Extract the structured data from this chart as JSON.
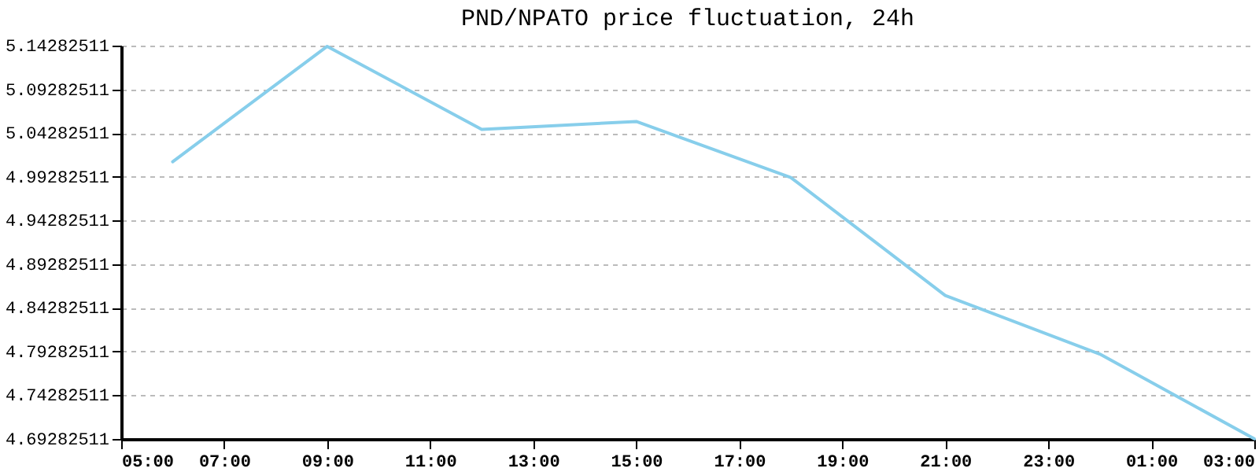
{
  "chart_data": {
    "type": "line",
    "title": "PND/NPATO price fluctuation, 24h",
    "x": [
      "--01-01T06:00",
      "--01-01T09:00",
      "--01-01T12:00",
      "--01-01T15:00",
      "--01-01T18:00",
      "--01-01T21:00",
      "--01-02T00:00",
      "--01-02T03:00"
    ],
    "series": [
      {
        "color": "#87ceeb",
        "values": [
          5.01,
          5.142,
          5.047,
          5.056,
          4.992,
          4.857,
          4.79,
          4.693
        ]
      }
    ],
    "xlim": [
      "--01-01T05:00",
      "--01-02T03:00"
    ],
    "xticks": [
      {
        "value": "--01-01T05:00",
        "label": "05:00"
      },
      {
        "value": "--01-01T07:00",
        "label": "07:00"
      },
      {
        "value": "--01-01T09:00",
        "label": "09:00"
      },
      {
        "value": "--01-01T11:00",
        "label": "11:00"
      },
      {
        "value": "--01-01T13:00",
        "label": "13:00"
      },
      {
        "value": "--01-01T15:00",
        "label": "15:00"
      },
      {
        "value": "--01-01T17:00",
        "label": "17:00"
      },
      {
        "value": "--01-01T19:00",
        "label": "19:00"
      },
      {
        "value": "--01-01T21:00",
        "label": "21:00"
      },
      {
        "value": "--01-01T23:00",
        "label": "23:00"
      },
      {
        "value": "--01-02T01:00",
        "label": "01:00"
      },
      {
        "value": "--01-02T03:00",
        "label": "03:00"
      }
    ],
    "ylim": [
      4.69282511,
      5.14282511
    ],
    "yticks": [
      4.69282511,
      4.74282511,
      4.79282511,
      4.84282511,
      4.89282511,
      4.94282511,
      4.99282511,
      5.04282511,
      5.09282511,
      5.14282511
    ],
    "grid": "y",
    "marker": "none",
    "line_style": "solid"
  }
}
